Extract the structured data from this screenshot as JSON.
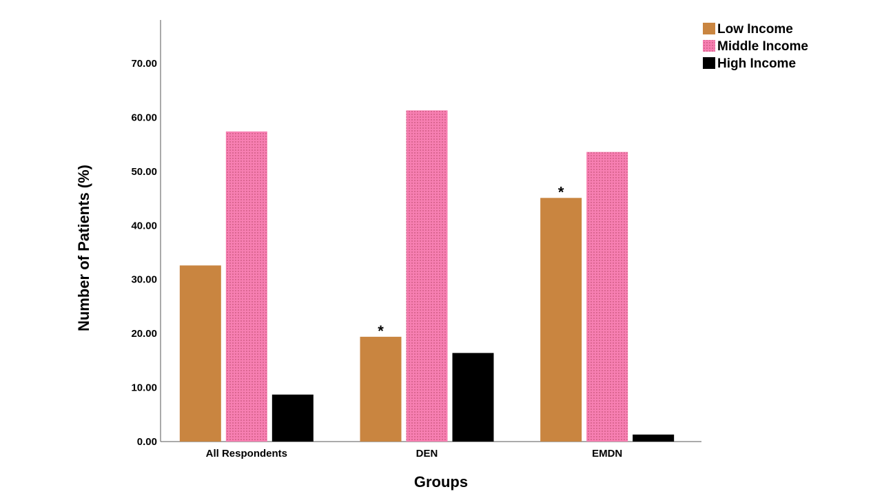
{
  "chart_data": {
    "type": "bar",
    "title": "",
    "xlabel": "Groups",
    "ylabel": "Number of Patients (%)",
    "ylim": [
      0,
      78
    ],
    "yticks": [
      "0.00",
      "10.00",
      "20.00",
      "30.00",
      "40.00",
      "50.00",
      "60.00",
      "70.00"
    ],
    "categories": [
      "All Respondents",
      "DEN",
      "EMDN"
    ],
    "series": [
      {
        "name": "Low Income",
        "color": "#c98540",
        "pattern": "solid",
        "values": [
          32.6,
          19.4,
          45.1
        ],
        "annotations": [
          "",
          "*",
          "*"
        ]
      },
      {
        "name": "Middle Income",
        "color": "#f77fb2",
        "pattern": "dotted",
        "values": [
          57.4,
          61.3,
          53.6
        ],
        "annotations": [
          "",
          "",
          ""
        ]
      },
      {
        "name": "High Income",
        "color": "#000000",
        "pattern": "solid",
        "values": [
          8.7,
          16.4,
          1.3
        ],
        "annotations": [
          "",
          "",
          ""
        ]
      }
    ],
    "legend_position": "top-right",
    "grid": false
  }
}
